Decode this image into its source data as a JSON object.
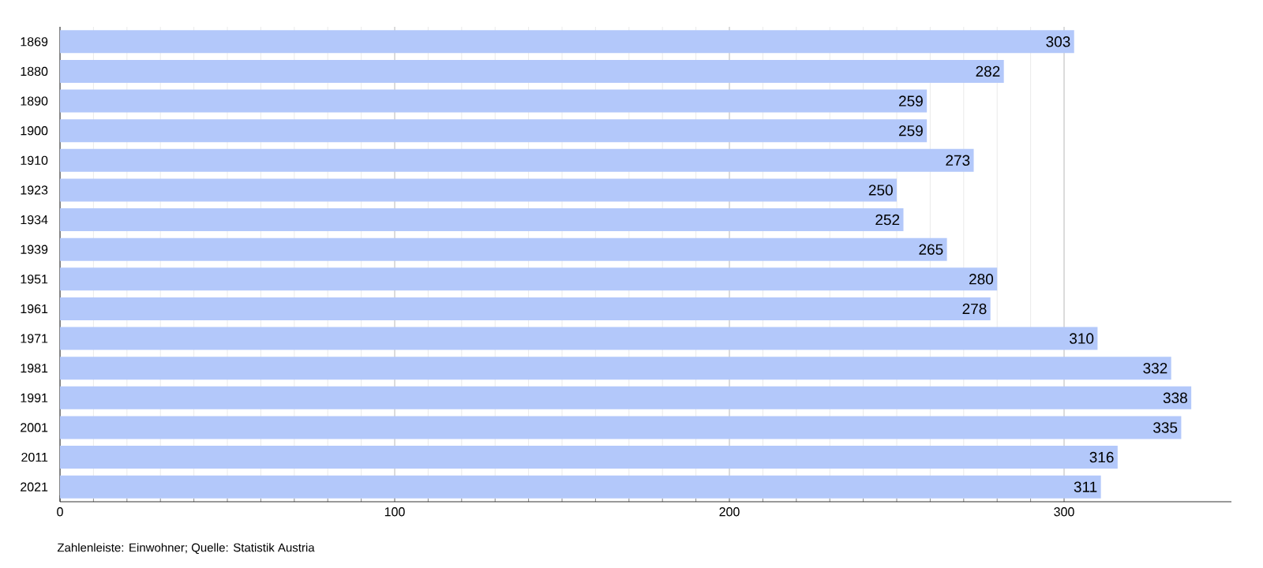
{
  "chart_data": {
    "type": "bar",
    "orientation": "horizontal",
    "categories": [
      "1869",
      "1880",
      "1890",
      "1900",
      "1910",
      "1923",
      "1934",
      "1939",
      "1951",
      "1961",
      "1971",
      "1981",
      "1991",
      "2001",
      "2011",
      "2021"
    ],
    "values": [
      303,
      282,
      259,
      259,
      273,
      250,
      252,
      265,
      280,
      278,
      310,
      332,
      338,
      335,
      316,
      311
    ],
    "color": "#b3c8fa",
    "data_labels": true,
    "grid": "x",
    "xlim": [
      0,
      350
    ],
    "xticks": [
      0,
      100,
      200,
      300
    ],
    "annotations": [
      "Zahlenleiste: Einwohner; Quelle: Statistik Austria"
    ]
  }
}
